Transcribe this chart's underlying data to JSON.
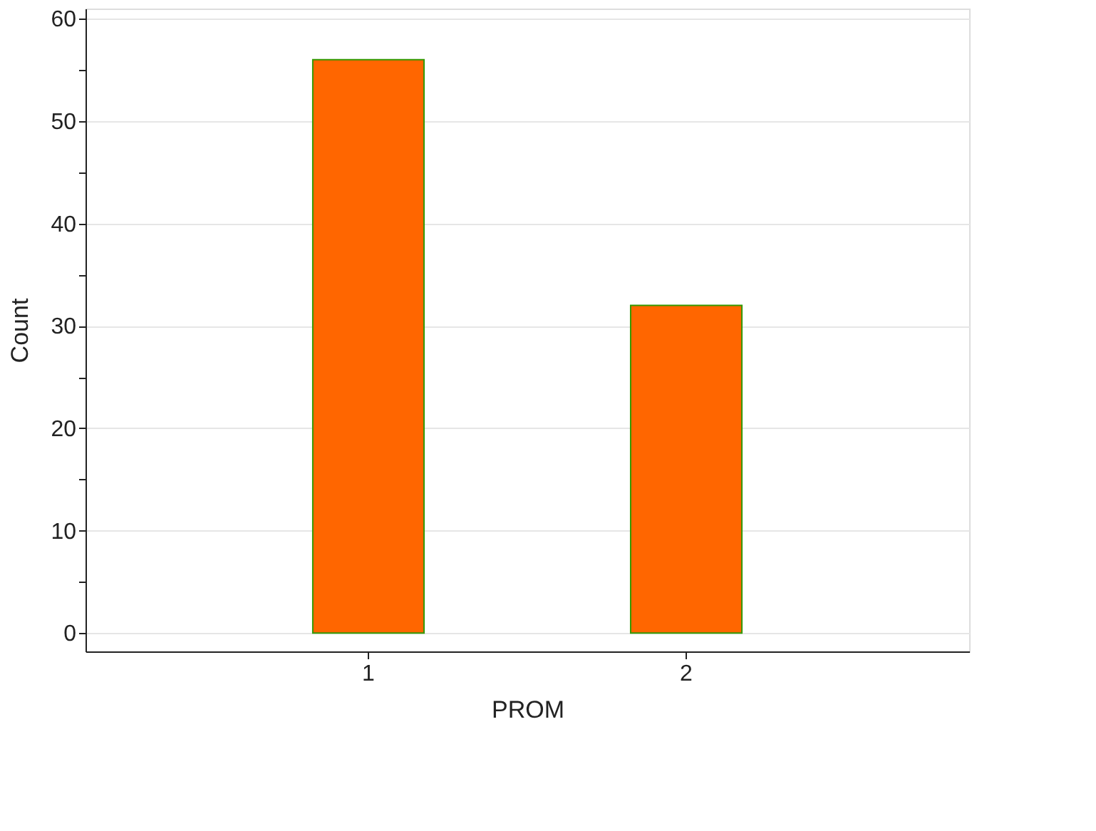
{
  "chart_data": {
    "type": "bar",
    "xlabel": "PROM",
    "ylabel": "Count",
    "categories": [
      "1",
      "2"
    ],
    "series": [
      {
        "color": "#ff6600",
        "values": [
          56,
          32
        ]
      }
    ],
    "ylim": [
      -1.8,
      61
    ],
    "yticks": [
      0,
      {
        "value": 5,
        "label": null
      },
      10,
      {
        "value": 15,
        "label": null
      },
      20,
      {
        "value": 25,
        "label": null
      },
      30,
      {
        "value": 35,
        "label": null
      },
      40,
      {
        "value": 45,
        "label": null
      },
      50,
      {
        "value": 55,
        "label": null
      },
      60
    ],
    "grid": "y"
  }
}
